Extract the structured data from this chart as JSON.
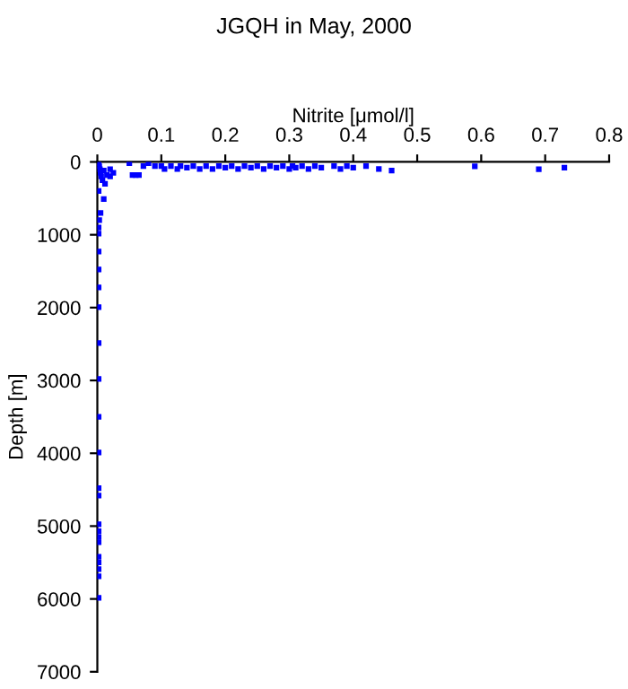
{
  "chart_data": {
    "type": "scatter",
    "title": "JGQH in May, 2000",
    "xlabel": "Nitrite [μmol/l]",
    "ylabel": "Depth [m]",
    "marker": "square",
    "grid": false,
    "xlim": [
      0,
      0.8
    ],
    "ylim": [
      7000,
      0
    ],
    "xticks": [
      0,
      0.1,
      0.2,
      0.3,
      0.4,
      0.5,
      0.6,
      0.7,
      0.8
    ],
    "yticks": [
      0,
      1000,
      2000,
      3000,
      4000,
      5000,
      6000,
      7000
    ],
    "series": [
      {
        "color": "#0000ff",
        "x": [
          0.05,
          0.055,
          0.06,
          0.065,
          0.072,
          0.08,
          0.09,
          0.1,
          0.105,
          0.115,
          0.125,
          0.13,
          0.14,
          0.15,
          0.16,
          0.17,
          0.18,
          0.19,
          0.2,
          0.21,
          0.22,
          0.23,
          0.24,
          0.25,
          0.26,
          0.27,
          0.28,
          0.29,
          0.3,
          0.305,
          0.31,
          0.32,
          0.33,
          0.34,
          0.35,
          0.37,
          0.38,
          0.39,
          0.4,
          0.42,
          0.44,
          0.46,
          0.59,
          0.69,
          0.73,
          0.002,
          0.003,
          0.004,
          0.005,
          0.006,
          0.008,
          0.01,
          0.012,
          0.015,
          0.02,
          0.02,
          0.025,
          0.01,
          0.005,
          0.003,
          0.002,
          0.002,
          0.002,
          0.002,
          0.002,
          0.002,
          0.002,
          0.002,
          0.002,
          0.002,
          0.002,
          0.002,
          0.002,
          0.002,
          0.002,
          0.002,
          0.002,
          0.002,
          0.002,
          0.002,
          0.002,
          0.002
        ],
        "values": [
          16,
          180,
          180,
          180,
          57,
          16,
          57,
          57,
          98,
          57,
          98,
          57,
          80,
          57,
          98,
          57,
          98,
          57,
          80,
          57,
          98,
          57,
          80,
          57,
          98,
          57,
          80,
          57,
          98,
          57,
          80,
          57,
          98,
          57,
          80,
          57,
          98,
          57,
          80,
          57,
          98,
          120,
          60,
          100,
          80,
          20,
          60,
          100,
          150,
          200,
          250,
          120,
          300,
          180,
          100,
          200,
          150,
          510,
          700,
          800,
          985,
          1230,
          1478,
          1724,
          1995,
          2488,
          2980,
          3500,
          3990,
          4480,
          4580,
          4975,
          5070,
          5150,
          5220,
          5420,
          5500,
          5590,
          5690,
          5985,
          400,
          900
        ]
      }
    ]
  }
}
